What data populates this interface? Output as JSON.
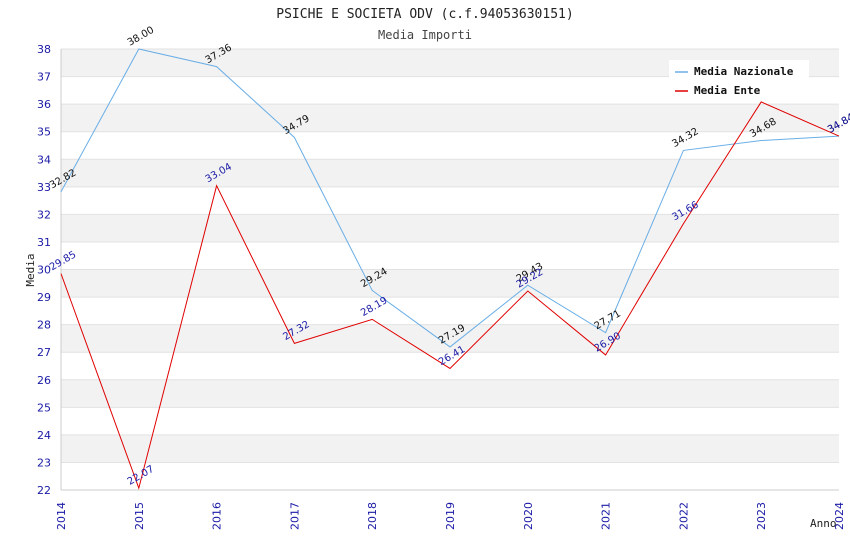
{
  "chart_data": {
    "type": "line",
    "title": "PSICHE E SOCIETA ODV (c.f.94053630151)",
    "subtitle": "Media Importi",
    "xlabel": "Anno",
    "ylabel": "Media",
    "x": [
      "2014",
      "2015",
      "2016",
      "2017",
      "2018",
      "2019",
      "2020",
      "2021",
      "2022",
      "2023",
      "2024"
    ],
    "ylim": [
      22,
      38
    ],
    "yticks": [
      22,
      23,
      24,
      25,
      26,
      27,
      28,
      29,
      30,
      31,
      32,
      33,
      34,
      35,
      36,
      37,
      38
    ],
    "grid": "horizontal alternating bands",
    "legend_position": "top-right",
    "series": [
      {
        "name": "Media Nazionale",
        "color": "#6aaee6",
        "values": [
          32.82,
          38.0,
          37.36,
          34.79,
          29.24,
          27.19,
          29.43,
          27.71,
          34.32,
          34.68,
          34.84
        ],
        "labels": [
          "32.82",
          "38.00",
          "37.36",
          "34.79",
          "29.24",
          "27.19",
          "29.43",
          "27.71",
          "34.32",
          "34.68",
          "34.84"
        ]
      },
      {
        "name": "Media Ente",
        "color": "#e00000",
        "values": [
          29.85,
          22.07,
          33.04,
          27.32,
          28.19,
          26.41,
          29.22,
          26.9,
          31.66,
          36.08,
          34.84
        ],
        "labels": [
          "29.85",
          "22.07",
          "33.04",
          "27.32",
          "28.19",
          "26.41",
          "29.22",
          "26.90",
          "31.66",
          "",
          "34.84"
        ]
      }
    ]
  }
}
